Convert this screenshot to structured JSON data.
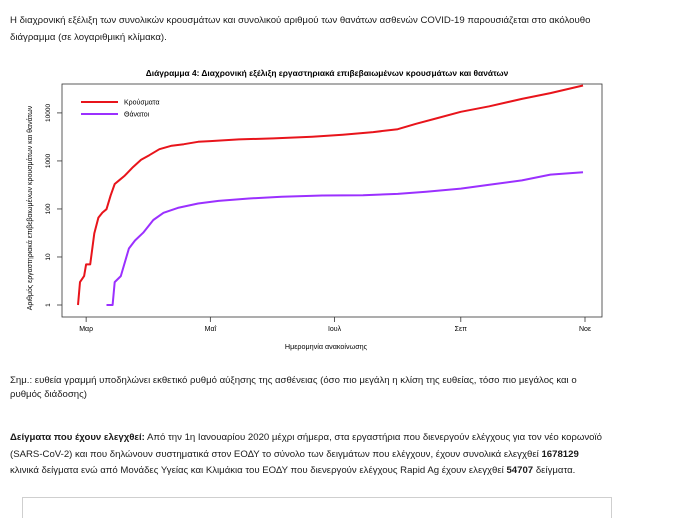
{
  "intro_text": "Η διαχρονική εξέλιξη των συνολικών κρουσμάτων και συνολικού αριθμού των θανάτων ασθενών COVID-19 παρουσιάζεται στο ακόλουθο διάγραμμα (σε λογαριθμική κλίμακα).",
  "note_text": "Σημ.: ευθεία γραμμή υποδηλώνει εκθετικό ρυθμό αύξησης της ασθένειας (όσο πιο μεγάλη η κλίση της ευθείας, τόσο πιο μεγάλος και ο ρυθμός διάδοσης)",
  "samples": {
    "heading": "Δείγματα που έχουν ελεγχθεί:",
    "text_1": " Από την 1η Ιανουαρίου 2020 μέχρι σήμερα, στα εργαστήρια που διενεργούν ελέγχους για τον νέο κορωνοϊό (SARS-CoV-2) και που δηλώνουν συστηματικά στον ΕΟΔΥ το σύνολο των δειγμάτων που ελέγχουν, έχουν συνολικά ελεγχθεί ",
    "pcr_count": "1678129",
    "text_2": " κλινικά δείγματα ενώ από Μονάδες Υγείας και Κλιμάκια του ΕΟΔΥ που διενεργούν ελέγχους Rapid Ag έχουν ελεγχθεί ",
    "rapid_count": "54707",
    "text_3": " δείγματα."
  },
  "chart_data": {
    "type": "line",
    "title": "Διάγραμμα 4: Διαχρονική εξέλιξη εργαστηριακά επιβεβαιωμένων κρουσμάτων και θανάτων",
    "xlabel": "Ημερομηνία ανακοίνωσης",
    "ylabel": "Αριθμός εργαστηριακά επιβεβαιωμένων κρουσμάτων και θανάτων",
    "yscale": "log",
    "ylim": [
      1,
      30000
    ],
    "xlim": [
      "2020-02-26",
      "2020-11-01"
    ],
    "y_ticks": [
      1,
      10,
      100,
      1000,
      10000
    ],
    "x_ticks": [
      {
        "label": "Μαρ",
        "date": "2020-03-01"
      },
      {
        "label": "Μαΐ",
        "date": "2020-05-01"
      },
      {
        "label": "Ιουλ",
        "date": "2020-07-01"
      },
      {
        "label": "Σεπ",
        "date": "2020-09-01"
      },
      {
        "label": "Νοε",
        "date": "2020-11-01"
      }
    ],
    "legend_position": "top-left",
    "grid": false,
    "series": [
      {
        "name": "Κρούσματα",
        "color": "#e8141b",
        "points": [
          [
            "2020-02-26",
            1
          ],
          [
            "2020-02-27",
            3
          ],
          [
            "2020-02-29",
            4
          ],
          [
            "2020-03-01",
            7
          ],
          [
            "2020-03-03",
            7
          ],
          [
            "2020-03-05",
            31
          ],
          [
            "2020-03-07",
            66
          ],
          [
            "2020-03-09",
            84
          ],
          [
            "2020-03-11",
            99
          ],
          [
            "2020-03-13",
            190
          ],
          [
            "2020-03-15",
            331
          ],
          [
            "2020-03-17",
            387
          ],
          [
            "2020-03-20",
            495
          ],
          [
            "2020-03-24",
            743
          ],
          [
            "2020-03-28",
            1061
          ],
          [
            "2020-04-01",
            1314
          ],
          [
            "2020-04-06",
            1755
          ],
          [
            "2020-04-12",
            2081
          ],
          [
            "2020-04-18",
            2235
          ],
          [
            "2020-04-25",
            2506
          ],
          [
            "2020-05-01",
            2591
          ],
          [
            "2020-05-15",
            2810
          ],
          [
            "2020-06-01",
            2952
          ],
          [
            "2020-06-20",
            3203
          ],
          [
            "2020-07-05",
            3511
          ],
          [
            "2020-07-20",
            3983
          ],
          [
            "2020-08-01",
            4587
          ],
          [
            "2020-08-10",
            5942
          ],
          [
            "2020-08-20",
            7684
          ],
          [
            "2020-09-01",
            10524
          ],
          [
            "2020-09-15",
            13730
          ],
          [
            "2020-10-01",
            19613
          ],
          [
            "2020-10-15",
            25802
          ],
          [
            "2020-10-31",
            37196
          ]
        ]
      },
      {
        "name": "Θάνατοι",
        "color": "#9b30ff",
        "points": [
          [
            "2020-03-11",
            1
          ],
          [
            "2020-03-14",
            1
          ],
          [
            "2020-03-15",
            3
          ],
          [
            "2020-03-18",
            4
          ],
          [
            "2020-03-22",
            15
          ],
          [
            "2020-03-25",
            22
          ],
          [
            "2020-03-29",
            32
          ],
          [
            "2020-04-03",
            59
          ],
          [
            "2020-04-08",
            83
          ],
          [
            "2020-04-15",
            105
          ],
          [
            "2020-04-25",
            130
          ],
          [
            "2020-05-05",
            147
          ],
          [
            "2020-05-20",
            165
          ],
          [
            "2020-06-05",
            180
          ],
          [
            "2020-06-25",
            191
          ],
          [
            "2020-07-15",
            193
          ],
          [
            "2020-08-01",
            206
          ],
          [
            "2020-08-15",
            228
          ],
          [
            "2020-09-01",
            266
          ],
          [
            "2020-09-15",
            320
          ],
          [
            "2020-10-01",
            393
          ],
          [
            "2020-10-15",
            520
          ],
          [
            "2020-10-31",
            581
          ]
        ]
      }
    ]
  }
}
